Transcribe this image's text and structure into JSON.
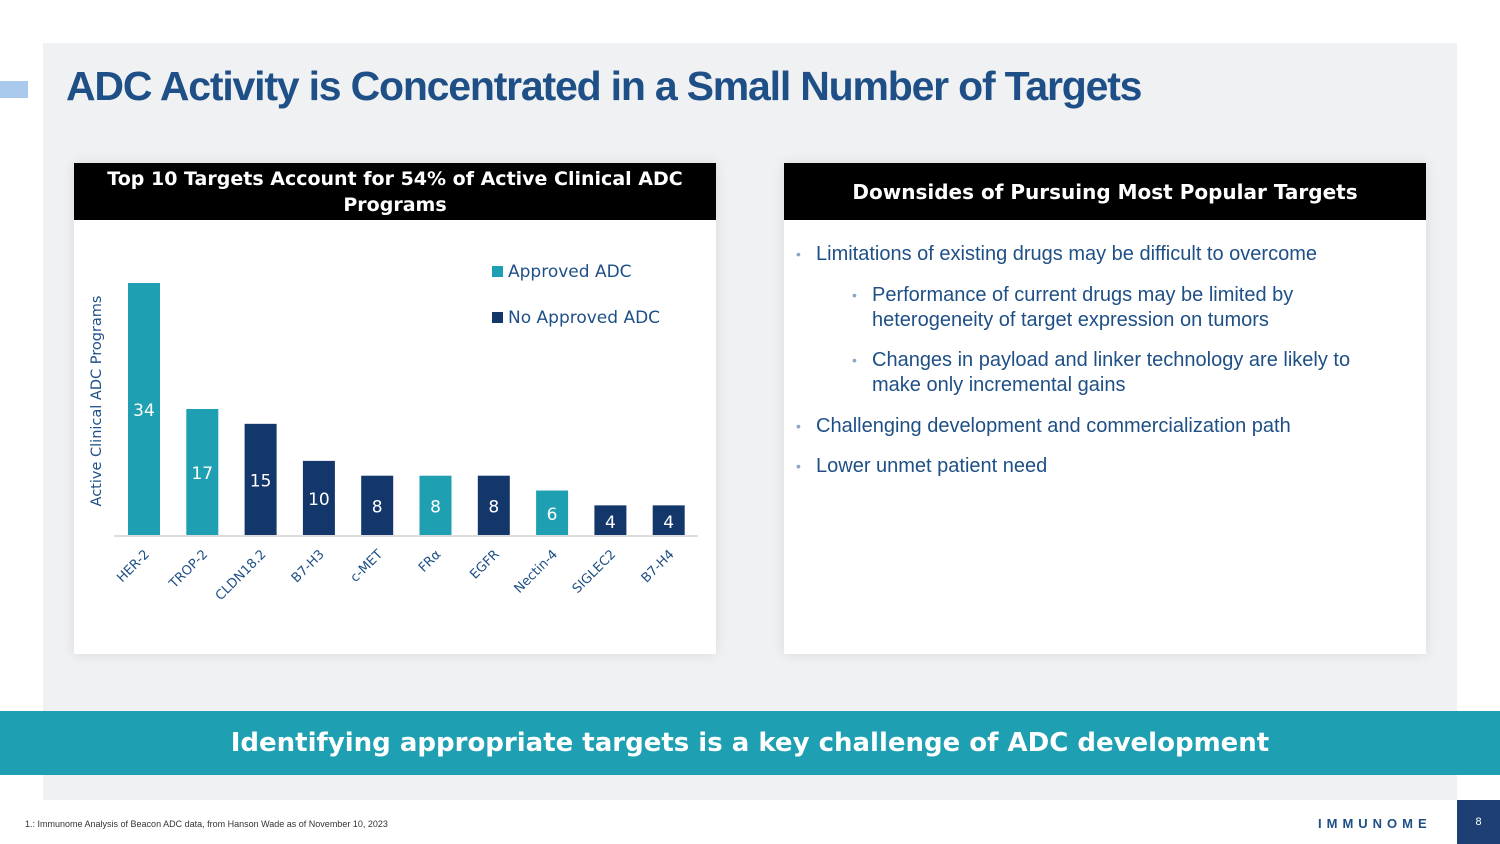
{
  "title": "ADC Activity is Concentrated in a Small Number of Targets",
  "left_panel": {
    "header": "Top 10 Targets Account for 54% of Active Clinical ADC Programs"
  },
  "right_panel": {
    "header": "Downsides of Pursuing Most Popular Targets",
    "bullets": [
      "Limitations of existing drugs may be difficult to overcome",
      "Performance of current drugs may be limited by heterogeneity of target expression on tumors",
      "Changes in payload and linker technology are likely to make only incremental gains",
      "Challenging development and commercialization path",
      "Lower unmet patient need"
    ]
  },
  "banner": "Identifying appropriate targets is a key challenge of ADC development",
  "footnote": "1.: Immunome Analysis of Beacon ADC data, from Hanson Wade as of November 10, 2023",
  "logo": "IMMUNOME",
  "page_number": "8",
  "colors": {
    "title": "#1e4f86",
    "approved": "#1fa0b2",
    "no_approved": "#14376b",
    "banner": "#1fa0b2",
    "bullet_text": "#1e4f86"
  },
  "chart_data": {
    "type": "bar",
    "title": "Top 10 Targets Account for 54% of Active Clinical ADC Programs",
    "xlabel": "",
    "ylabel": "Active Clinical ADC Programs",
    "categories": [
      "HER-2",
      "TROP-2",
      "CLDN18.2",
      "B7-H3",
      "c-MET",
      "FRα",
      "EGFR",
      "Nectin-4",
      "SIGLEC2",
      "B7-H4"
    ],
    "values": [
      34,
      17,
      15,
      10,
      8,
      8,
      8,
      6,
      4,
      4
    ],
    "approval_status": [
      "Approved ADC",
      "Approved ADC",
      "No Approved ADC",
      "No Approved ADC",
      "No Approved ADC",
      "Approved ADC",
      "No Approved ADC",
      "Approved ADC",
      "No Approved ADC",
      "No Approved ADC"
    ],
    "legend": [
      "Approved ADC",
      "No Approved ADC"
    ],
    "legend_position": "top-right",
    "ylim": [
      0,
      34
    ],
    "grid": false,
    "data_labels": true
  }
}
